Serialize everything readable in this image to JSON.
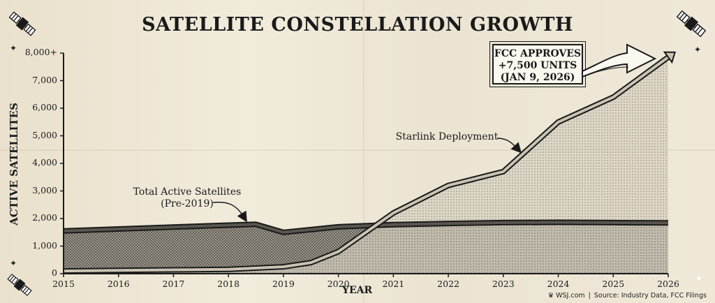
{
  "title": "SATELLITE CONSTELLATION GROWTH",
  "chart_data": {
    "type": "area",
    "title": "SATELLITE CONSTELLATION GROWTH",
    "xlabel": "YEAR",
    "ylabel": "ACTIVE SATELLITES",
    "xlim": [
      2015,
      2026
    ],
    "ylim": [
      0,
      8000
    ],
    "y_ticks": [
      0,
      1000,
      2000,
      3000,
      4000,
      5000,
      6000,
      7000,
      8000
    ],
    "y_tick_labels": [
      "0",
      "1,000",
      "2,000",
      "3,000",
      "4,000",
      "5,000",
      "6,000",
      "7,000",
      "8,000+"
    ],
    "x_ticks": [
      2015,
      2016,
      2017,
      2018,
      2019,
      2020,
      2021,
      2022,
      2023,
      2024,
      2025,
      2026
    ],
    "x_tick_labels": [
      "2015",
      "2016",
      "2017",
      "2018",
      "2019",
      "2020",
      "2021",
      "2022",
      "2023",
      "2024",
      "2025",
      "2026"
    ],
    "grid": false,
    "series": [
      {
        "name": "Total Active Satellites (Pre-2019)",
        "x": [
          2015,
          2016,
          2017,
          2018,
          2018.5,
          2019,
          2020,
          2021,
          2022,
          2023,
          2024,
          2025,
          2026
        ],
        "values": [
          1550,
          1620,
          1690,
          1760,
          1790,
          1500,
          1700,
          1780,
          1820,
          1850,
          1860,
          1850,
          1840
        ]
      },
      {
        "name": "Starlink Deployment",
        "x": [
          2015,
          2016,
          2017,
          2018,
          2019,
          2019.5,
          2020,
          2021,
          2022,
          2023,
          2024,
          2025,
          2026
        ],
        "values": [
          100,
          120,
          140,
          160,
          250,
          400,
          800,
          2200,
          3200,
          3700,
          5500,
          6400,
          7850
        ]
      }
    ],
    "annotations": [
      {
        "text": "Total Active Satellites (Pre-2019)",
        "line1": "Total Active Satellites",
        "line2": "(Pre-2019)"
      },
      {
        "text": "Starlink Deployment"
      },
      {
        "text": "FCC APPROVES +7,500 UNITS (JAN 9, 2026)",
        "line1": "FCC APPROVES",
        "line2": "+7,500 UNITS",
        "line3": "(JAN 9, 2026)"
      }
    ]
  },
  "footer": {
    "brand": "WSJ.com",
    "source": "Source: Industry Data, FCC Filings"
  },
  "icons": [
    "satellite-icon",
    "star-icon"
  ],
  "colors": {
    "paper": "#ece5d3",
    "ink": "#1a1a1a",
    "box_bg": "#fbf8f0"
  }
}
